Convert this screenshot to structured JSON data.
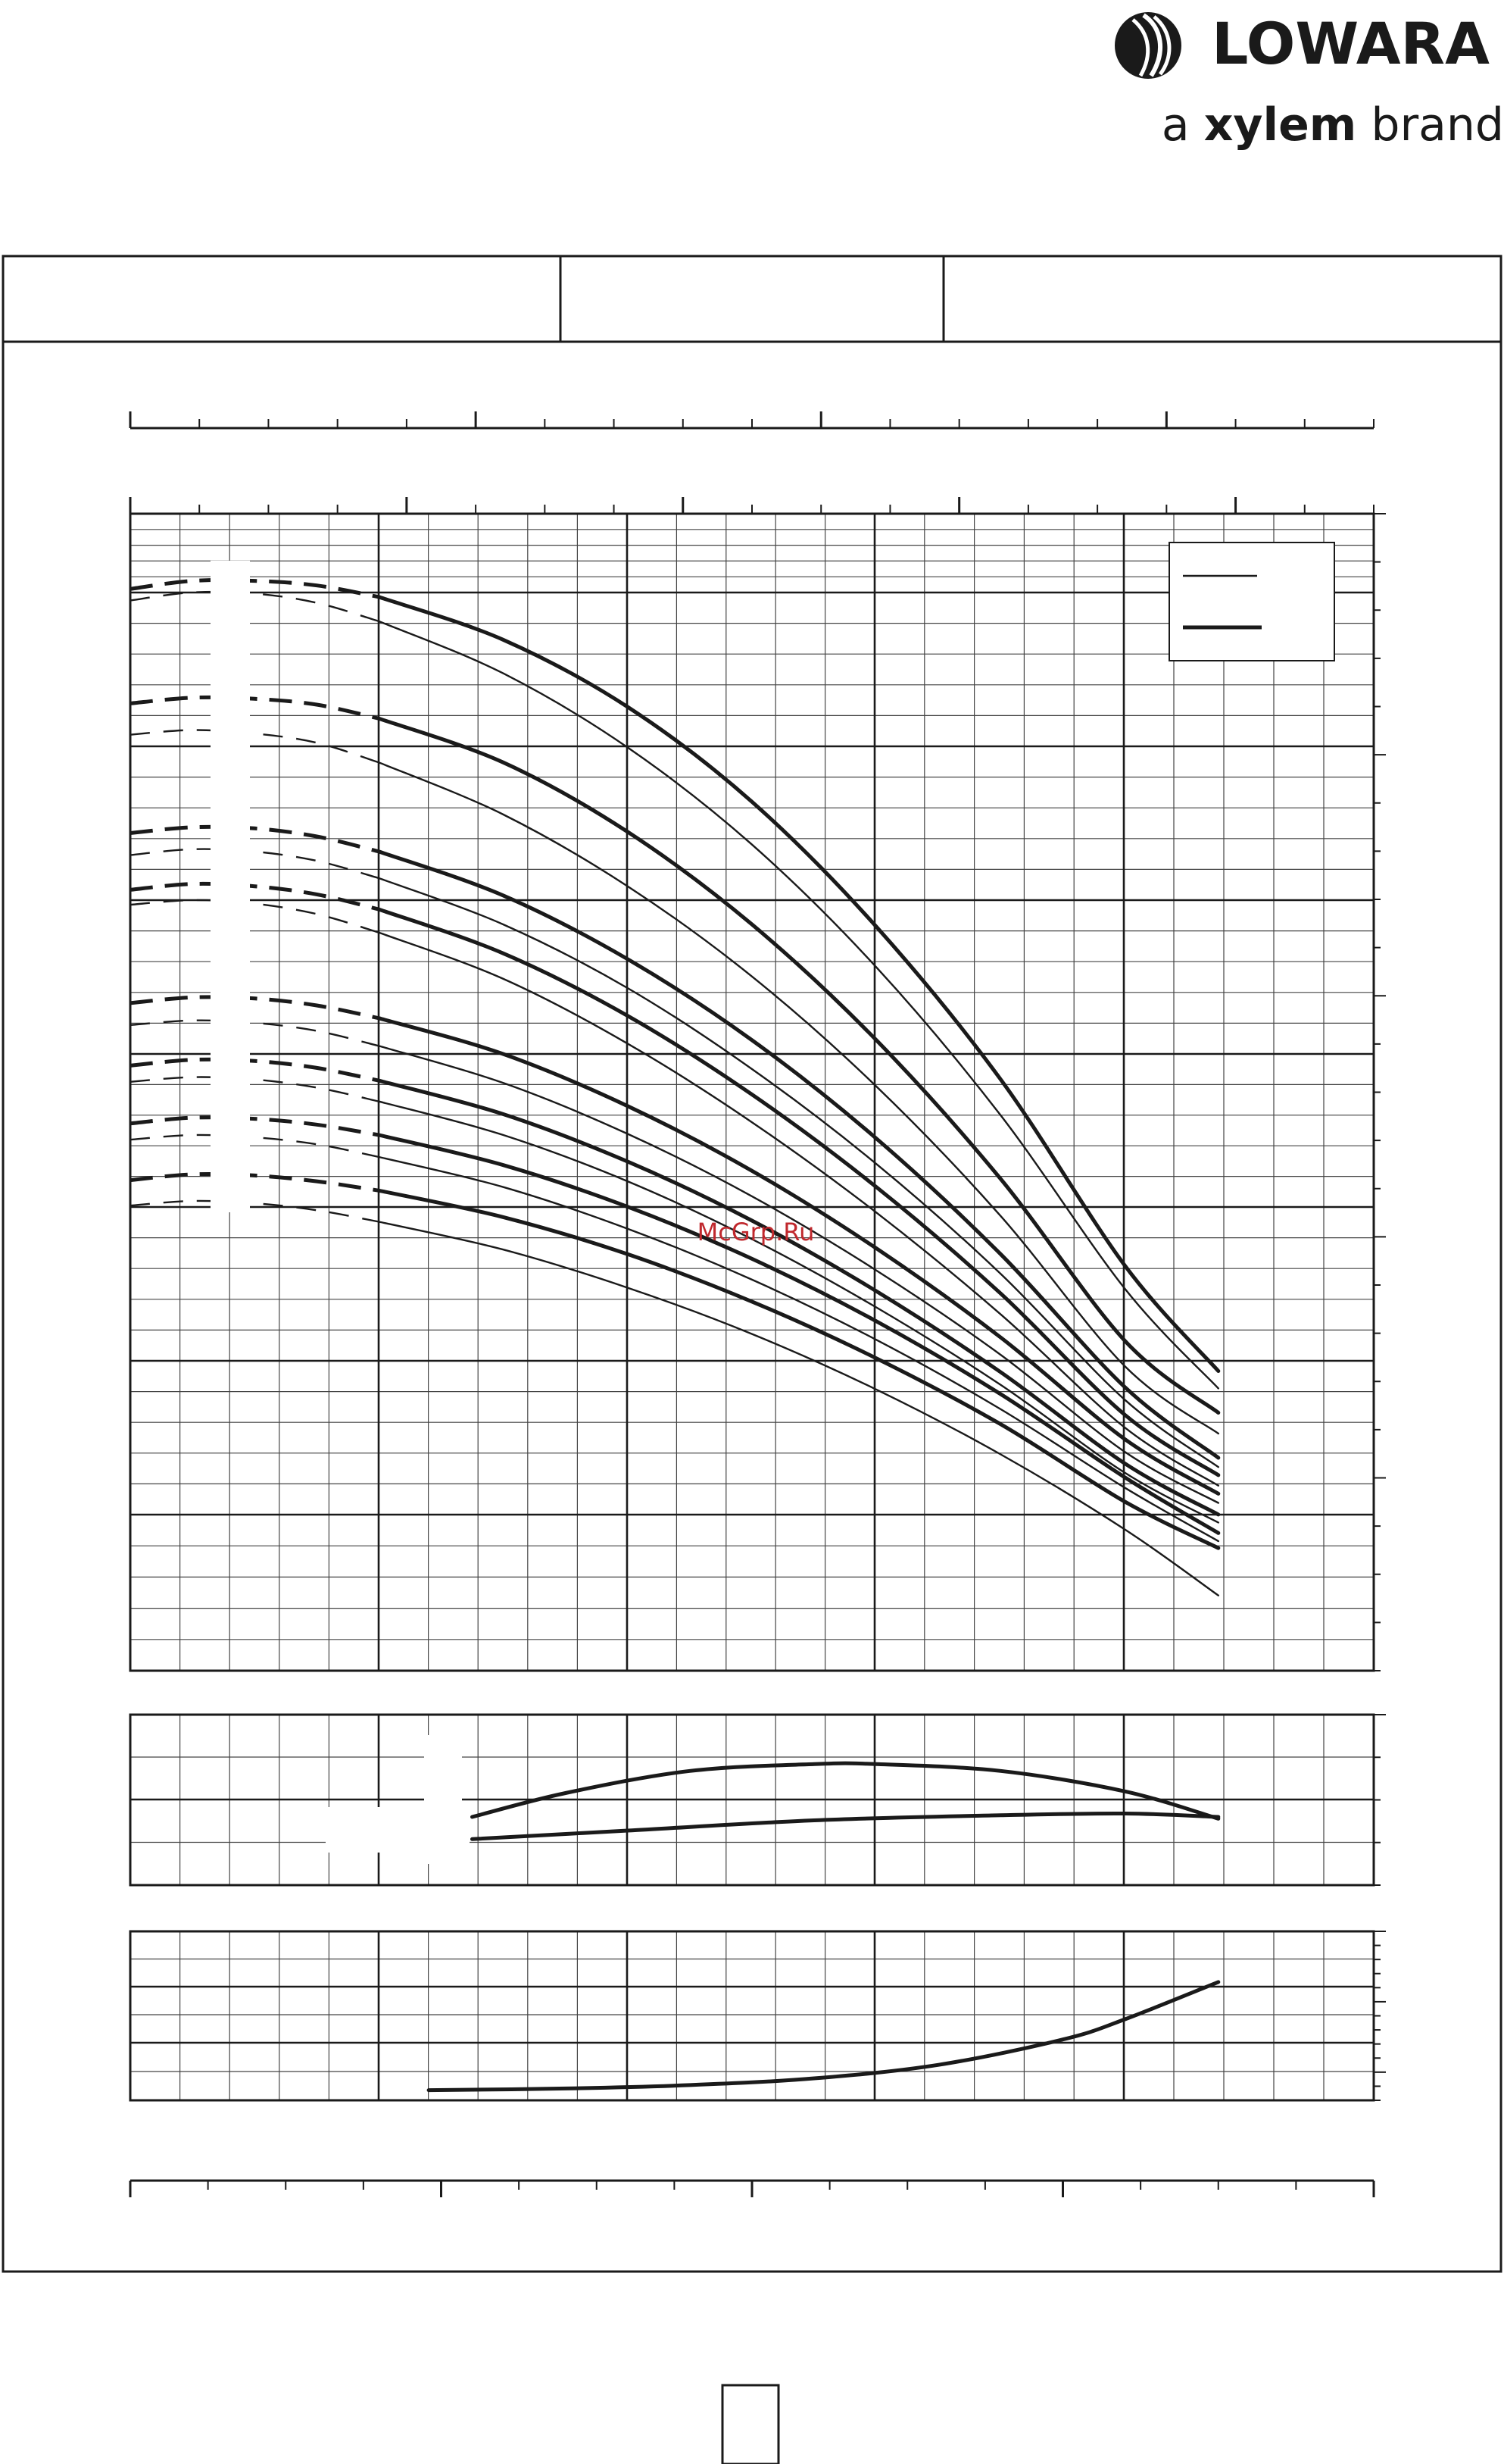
{
  "brand": {
    "name": "LOWARA",
    "tagline_prefix": "a",
    "tagline_brand": "xylem",
    "tagline_suffix": "brand"
  },
  "watermark": "McGrp.Ru",
  "colors": {
    "ink": "#1a1a1a",
    "grid": "#444444",
    "watermark": "#c0282d"
  },
  "chart_data": [
    {
      "type": "line",
      "panel": "head",
      "grid": true,
      "xlim": [
        0,
        100
      ],
      "ylim": [
        0,
        100
      ],
      "series": [
        {
          "style": "thick",
          "x": [
            0,
            5,
            10,
            15,
            20,
            30,
            40,
            50,
            60,
            70,
            80,
            87.5
          ],
          "y": [
            93.5,
            94.2,
            94.2,
            93.8,
            92.8,
            89.1,
            83.3,
            75.1,
            64.3,
            51.1,
            35.0,
            25.9
          ]
        },
        {
          "style": "thin",
          "x": [
            0,
            5,
            10,
            15,
            20,
            30,
            40,
            50,
            60,
            70,
            80,
            87.5
          ],
          "y": [
            92.5,
            93.2,
            93.1,
            92.3,
            90.7,
            86.2,
            79.8,
            71.4,
            60.8,
            48.0,
            33.0,
            24.4
          ]
        },
        {
          "style": "thick",
          "x": [
            0,
            5,
            10,
            15,
            20,
            30,
            40,
            50,
            60,
            70,
            80,
            87.5
          ],
          "y": [
            83.6,
            84.1,
            84.0,
            83.5,
            82.3,
            78.5,
            72.5,
            64.5,
            54.5,
            42.5,
            28.5,
            22.3
          ]
        },
        {
          "style": "thin",
          "x": [
            0,
            5,
            10,
            15,
            20,
            30,
            40,
            50,
            60,
            70,
            80,
            87.5
          ],
          "y": [
            80.9,
            81.3,
            81.0,
            80.2,
            78.5,
            74.0,
            67.8,
            60.0,
            50.5,
            39.3,
            26.3,
            20.5
          ]
        },
        {
          "style": "thick",
          "x": [
            0,
            5,
            10,
            15,
            20,
            30,
            40,
            50,
            60,
            70,
            80,
            87.5
          ],
          "y": [
            72.4,
            72.9,
            72.8,
            72.1,
            70.8,
            67.0,
            61.5,
            54.5,
            46.0,
            36.0,
            24.5,
            18.4
          ]
        },
        {
          "style": "thin",
          "x": [
            0,
            5,
            10,
            15,
            20,
            30,
            40,
            50,
            60,
            70,
            80,
            87.5
          ],
          "y": [
            70.5,
            71.0,
            70.8,
            70.0,
            68.5,
            64.5,
            59.0,
            52.0,
            43.8,
            34.3,
            23.4,
            17.6
          ]
        },
        {
          "style": "thick",
          "x": [
            0,
            5,
            10,
            15,
            20,
            30,
            40,
            50,
            60,
            70,
            80,
            87.5
          ],
          "y": [
            67.5,
            68.0,
            67.8,
            67.1,
            65.8,
            62.0,
            56.6,
            49.8,
            41.8,
            32.6,
            22.1,
            16.9
          ]
        },
        {
          "style": "thin",
          "x": [
            0,
            5,
            10,
            15,
            20,
            30,
            40,
            50,
            60,
            70,
            80,
            87.5
          ],
          "y": [
            66.2,
            66.6,
            66.3,
            65.4,
            63.8,
            59.8,
            54.2,
            47.4,
            39.6,
            30.8,
            21.0,
            16.0
          ]
        },
        {
          "style": "thick",
          "x": [
            0,
            5,
            10,
            15,
            20,
            30,
            40,
            50,
            60,
            70,
            80,
            87.5
          ],
          "y": [
            57.7,
            58.2,
            58.1,
            57.5,
            56.4,
            53.3,
            48.8,
            43.2,
            36.5,
            28.8,
            20.0,
            15.3
          ]
        },
        {
          "style": "thin",
          "x": [
            0,
            5,
            10,
            15,
            20,
            30,
            40,
            50,
            60,
            70,
            80,
            87.5
          ],
          "y": [
            55.8,
            56.2,
            56.0,
            55.3,
            54.0,
            50.8,
            46.4,
            41.0,
            34.6,
            27.3,
            18.9,
            14.5
          ]
        },
        {
          "style": "thick",
          "x": [
            0,
            5,
            10,
            15,
            20,
            30,
            40,
            50,
            60,
            70,
            80,
            87.5
          ],
          "y": [
            52.3,
            52.8,
            52.7,
            52.1,
            51.0,
            48.1,
            44.0,
            38.9,
            32.8,
            25.8,
            17.9,
            13.5
          ]
        },
        {
          "style": "thin",
          "x": [
            0,
            5,
            10,
            15,
            20,
            30,
            40,
            50,
            60,
            70,
            80,
            87.5
          ],
          "y": [
            50.9,
            51.3,
            51.1,
            50.4,
            49.2,
            46.3,
            42.3,
            37.3,
            31.4,
            24.7,
            17.1,
            12.8
          ]
        },
        {
          "style": "thick",
          "x": [
            0,
            5,
            10,
            15,
            20,
            30,
            40,
            50,
            60,
            70,
            80,
            87.5
          ],
          "y": [
            47.3,
            47.8,
            47.7,
            47.2,
            46.3,
            43.7,
            40.1,
            35.6,
            30.2,
            23.9,
            16.7,
            11.9
          ]
        },
        {
          "style": "thin",
          "x": [
            0,
            5,
            10,
            15,
            20,
            30,
            40,
            50,
            60,
            70,
            80,
            87.5
          ],
          "y": [
            45.9,
            46.3,
            46.1,
            45.5,
            44.4,
            41.8,
            38.2,
            33.8,
            28.6,
            22.6,
            15.8,
            11.2
          ]
        },
        {
          "style": "thick",
          "x": [
            0,
            5,
            10,
            15,
            20,
            30,
            40,
            50,
            60,
            70,
            80,
            87.5
          ],
          "y": [
            42.4,
            42.9,
            42.8,
            42.3,
            41.5,
            39.2,
            36.0,
            31.9,
            27.0,
            21.3,
            14.6,
            10.6
          ]
        },
        {
          "style": "thin",
          "x": [
            0,
            5,
            10,
            15,
            20,
            30,
            40,
            50,
            60,
            70,
            80,
            87.5
          ],
          "y": [
            40.2,
            40.6,
            40.4,
            39.8,
            38.8,
            36.4,
            33.1,
            29.1,
            24.3,
            18.7,
            12.2,
            6.5
          ]
        }
      ]
    },
    {
      "type": "line",
      "panel": "efficiency",
      "grid": true,
      "xlim": [
        0,
        100
      ],
      "ylim": [
        0,
        100
      ],
      "series": [
        {
          "style": "thick",
          "x": [
            27.5,
            35,
            45,
            55,
            60,
            70,
            80,
            87.5
          ],
          "y": [
            40,
            54,
            67,
            71,
            71,
            67,
            55,
            39
          ]
        },
        {
          "style": "thick",
          "x": [
            27.5,
            40,
            55,
            70,
            80,
            87.5
          ],
          "y": [
            27,
            32,
            38,
            41,
            42,
            40
          ]
        }
      ]
    },
    {
      "type": "line",
      "panel": "npsh",
      "grid": true,
      "xlim": [
        0,
        100
      ],
      "ylim": [
        0,
        100
      ],
      "series": [
        {
          "style": "thick",
          "x": [
            24,
            35,
            45,
            55,
            65,
            75,
            80,
            87.5
          ],
          "y": [
            6,
            7,
            9,
            13,
            21,
            36,
            48,
            70
          ]
        }
      ]
    }
  ]
}
